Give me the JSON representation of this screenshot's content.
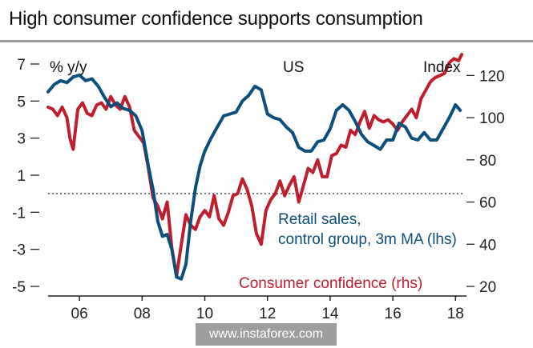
{
  "title": "High consumer confidence supports consumption",
  "watermark": "www.instaforex.com",
  "chart_data": {
    "type": "line",
    "panel_label": "US",
    "y_left_label": "% y/y",
    "y_right_label": "Index",
    "x_ticks": [
      "06",
      "08",
      "10",
      "12",
      "14",
      "16",
      "18"
    ],
    "x_tick_values": [
      2006,
      2008,
      2010,
      2012,
      2014,
      2016,
      2018
    ],
    "xlim": [
      2005,
      2018.35
    ],
    "left_axis": {
      "range": [
        -5,
        7
      ],
      "ticks": [
        "7",
        "5",
        "3",
        "1",
        "-1",
        "-3",
        "-5"
      ],
      "tick_values": [
        7,
        5,
        3,
        1,
        -1,
        -3,
        -5
      ]
    },
    "right_axis": {
      "range": [
        20,
        130
      ],
      "ticks": [
        "120",
        "100",
        "80",
        "60",
        "40",
        "20"
      ],
      "tick_values": [
        120,
        100,
        80,
        60,
        40,
        20
      ]
    },
    "zero_line": {
      "value": 0,
      "style": "dotted"
    },
    "grid": false,
    "series": [
      {
        "name": "Retail sales, control group, 3m MA (lhs)",
        "axis": "left",
        "color": "#0d4f7a",
        "x": [
          2005.0,
          2005.2,
          2005.4,
          2005.6,
          2005.8,
          2006.0,
          2006.2,
          2006.4,
          2006.6,
          2006.8,
          2007.0,
          2007.2,
          2007.4,
          2007.6,
          2007.8,
          2008.0,
          2008.2,
          2008.35,
          2008.5,
          2008.65,
          2008.8,
          2008.95,
          2009.1,
          2009.25,
          2009.4,
          2009.55,
          2009.7,
          2009.85,
          2010.0,
          2010.2,
          2010.4,
          2010.6,
          2010.8,
          2011.0,
          2011.2,
          2011.4,
          2011.6,
          2011.8,
          2012.0,
          2012.2,
          2012.4,
          2012.6,
          2012.8,
          2013.0,
          2013.2,
          2013.4,
          2013.6,
          2013.8,
          2014.0,
          2014.2,
          2014.4,
          2014.6,
          2014.8,
          2015.0,
          2015.2,
          2015.4,
          2015.6,
          2015.8,
          2016.0,
          2016.2,
          2016.4,
          2016.6,
          2016.8,
          2017.0,
          2017.2,
          2017.4,
          2017.6,
          2017.8,
          2018.0,
          2018.15
        ],
        "values": [
          5.5,
          5.9,
          6.1,
          6.0,
          6.3,
          6.4,
          6.1,
          6.2,
          5.8,
          5.2,
          4.7,
          4.9,
          4.6,
          4.5,
          4.2,
          3.4,
          1.5,
          0.2,
          -1.5,
          -2.3,
          -2.2,
          -3.0,
          -4.5,
          -4.6,
          -3.8,
          -1.5,
          0.3,
          1.5,
          2.3,
          3.0,
          3.6,
          4.2,
          4.3,
          4.4,
          5.0,
          5.3,
          5.8,
          5.6,
          4.3,
          4.1,
          4.0,
          3.6,
          3.3,
          2.5,
          2.3,
          2.3,
          2.8,
          2.9,
          3.5,
          4.5,
          4.8,
          4.5,
          3.9,
          3.2,
          2.8,
          2.6,
          2.4,
          2.9,
          2.9,
          3.8,
          3.6,
          3.0,
          2.9,
          3.3,
          2.9,
          2.9,
          3.5,
          4.1,
          4.8,
          4.5
        ]
      },
      {
        "name": "Consumer confidence (rhs)",
        "axis": "right",
        "color": "#bf1e2e",
        "x": [
          2005.0,
          2005.15,
          2005.3,
          2005.45,
          2005.6,
          2005.7,
          2005.8,
          2005.95,
          2006.1,
          2006.25,
          2006.4,
          2006.55,
          2006.7,
          2006.85,
          2007.0,
          2007.15,
          2007.3,
          2007.45,
          2007.6,
          2007.75,
          2007.9,
          2008.05,
          2008.2,
          2008.35,
          2008.5,
          2008.65,
          2008.8,
          2008.95,
          2009.1,
          2009.25,
          2009.4,
          2009.55,
          2009.7,
          2009.85,
          2010.0,
          2010.15,
          2010.3,
          2010.45,
          2010.6,
          2010.75,
          2010.9,
          2011.05,
          2011.2,
          2011.35,
          2011.5,
          2011.65,
          2011.8,
          2011.95,
          2012.1,
          2012.25,
          2012.4,
          2012.55,
          2012.7,
          2012.85,
          2013.0,
          2013.15,
          2013.3,
          2013.45,
          2013.6,
          2013.75,
          2013.9,
          2014.05,
          2014.2,
          2014.35,
          2014.5,
          2014.65,
          2014.8,
          2014.95,
          2015.1,
          2015.25,
          2015.4,
          2015.55,
          2015.7,
          2015.85,
          2016.0,
          2016.15,
          2016.3,
          2016.45,
          2016.6,
          2016.75,
          2016.9,
          2017.05,
          2017.2,
          2017.35,
          2017.5,
          2017.65,
          2017.8,
          2017.95,
          2018.1,
          2018.2
        ],
        "values": [
          105,
          104,
          101,
          105,
          100,
          90,
          85,
          104,
          107,
          102,
          101,
          106,
          107,
          104,
          110,
          106,
          104,
          110,
          105,
          94,
          91,
          88,
          76,
          62,
          58,
          52,
          60,
          38,
          25,
          40,
          54,
          49,
          47,
          53,
          56,
          53,
          63,
          52,
          49,
          55,
          63,
          64,
          71,
          66,
          58,
          45,
          40,
          56,
          61,
          64,
          70,
          63,
          68,
          72,
          60,
          68,
          76,
          74,
          80,
          72,
          72,
          82,
          83,
          87,
          86,
          94,
          92,
          98,
          103,
          95,
          101,
          99,
          98,
          99,
          97,
          94,
          98,
          101,
          104,
          100,
          109,
          113,
          117,
          119,
          120,
          121,
          126,
          128,
          127,
          130
        ]
      }
    ]
  }
}
